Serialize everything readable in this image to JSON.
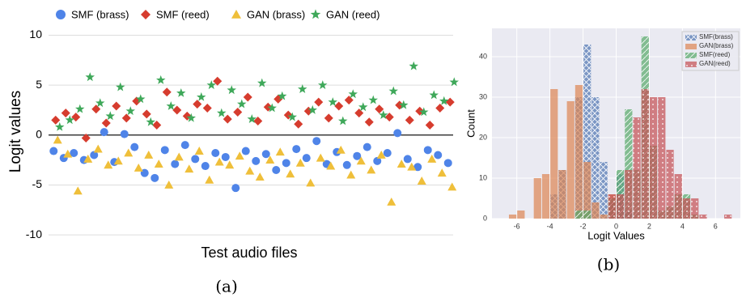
{
  "chart_data": [
    {
      "type": "scatter",
      "ylabel": "Logit values",
      "xlabel": "Test audio files",
      "caption": "(a)",
      "ylim": [
        -10.8,
        11.5
      ],
      "yticks": [
        10,
        5,
        0,
        -5,
        -10
      ],
      "zero_line": true,
      "grid": true,
      "series": [
        {
          "name": "SMF (brass)",
          "color": "#4f84e8",
          "marker": "circle",
          "values": [
            -1.6,
            -2.3,
            -1.8,
            -2.5,
            -2.0,
            0.3,
            -2.7,
            0.1,
            -1.2,
            -3.8,
            -4.3,
            -1.5,
            -2.9,
            -1.0,
            -2.4,
            -3.1,
            -1.8,
            -2.2,
            -5.3,
            -1.6,
            -2.6,
            -1.9,
            -3.5,
            -2.8,
            -1.4,
            -2.3,
            -0.6,
            -2.9,
            -1.7,
            -3.0,
            -2.1,
            -1.2,
            -2.6,
            -1.8,
            0.2,
            -2.4,
            -3.2,
            -1.5,
            -2.0,
            -2.8
          ]
        },
        {
          "name": "SMF (reed)",
          "color": "#d63c2e",
          "marker": "diamond",
          "values": [
            1.5,
            2.2,
            1.8,
            -0.3,
            2.6,
            1.2,
            2.9,
            1.7,
            3.4,
            2.1,
            1.0,
            4.3,
            2.5,
            1.9,
            3.1,
            2.7,
            5.4,
            1.6,
            2.3,
            3.8,
            1.4,
            2.8,
            3.6,
            2.0,
            1.1,
            2.4,
            3.3,
            1.7,
            2.9,
            3.5,
            2.2,
            1.3,
            2.6,
            1.8,
            3.0,
            1.5,
            2.4,
            1.0,
            2.7,
            3.3
          ]
        },
        {
          "name": "GAN (brass)",
          "color": "#efbf3a",
          "marker": "triangle",
          "values": [
            -0.5,
            -1.9,
            -5.6,
            -2.4,
            -1.4,
            -3.0,
            -2.6,
            -1.8,
            -3.3,
            -2.0,
            -2.9,
            -5.0,
            -2.2,
            -3.4,
            -1.6,
            -4.5,
            -2.7,
            -3.0,
            -2.1,
            -3.6,
            -4.2,
            -2.5,
            -1.7,
            -3.9,
            -2.8,
            -4.8,
            -2.3,
            -3.1,
            -1.5,
            -4.0,
            -2.6,
            -3.5,
            -2.0,
            -6.7,
            -2.9,
            -3.2,
            -4.6,
            -2.4,
            -3.8,
            -5.2
          ]
        },
        {
          "name": "GAN (reed)",
          "color": "#3fa85a",
          "marker": "star",
          "values": [
            0.8,
            1.5,
            2.6,
            5.8,
            3.2,
            1.9,
            4.8,
            2.4,
            3.6,
            1.3,
            5.5,
            2.9,
            4.2,
            1.7,
            3.8,
            5.0,
            2.2,
            4.5,
            3.1,
            1.6,
            5.2,
            2.7,
            3.9,
            1.8,
            4.6,
            2.5,
            5.0,
            3.3,
            1.4,
            4.1,
            2.8,
            3.5,
            2.0,
            4.4,
            3.0,
            6.9,
            2.3,
            4.0,
            3.4,
            5.3
          ]
        }
      ]
    },
    {
      "type": "histogram",
      "ylabel": "Count",
      "xlabel": "Logit Values",
      "caption": "(b)",
      "xlim": [
        -7.5,
        7.5
      ],
      "xticks": [
        -6,
        -4,
        -2,
        0,
        2,
        4,
        6
      ],
      "ylim": [
        0,
        47
      ],
      "yticks": [
        0,
        10,
        20,
        30,
        40
      ],
      "grid": true,
      "legend": "upper right",
      "bins": [
        -6.5,
        -6,
        -5.5,
        -5,
        -4.5,
        -4,
        -3.5,
        -3,
        -2.5,
        -2,
        -1.5,
        -1,
        -0.5,
        0,
        0.5,
        1,
        1.5,
        2,
        2.5,
        3,
        3.5,
        4,
        4.5,
        5,
        5.5,
        6,
        6.5,
        7
      ],
      "series": [
        {
          "name": "SMF(brass)",
          "color": "#4c72b0",
          "hatch": "cross",
          "values": [
            0,
            0,
            0,
            0,
            0,
            6,
            12,
            0,
            30,
            43,
            30,
            14,
            4,
            11,
            2,
            0,
            0,
            0,
            0,
            0,
            0,
            0,
            0,
            0,
            0,
            0,
            0
          ]
        },
        {
          "name": "GAN(brass)",
          "color": "#dd8452",
          "hatch": "none",
          "values": [
            1,
            2,
            0,
            10,
            11,
            32,
            12,
            29,
            33,
            14,
            4,
            1,
            6,
            0,
            0,
            0,
            0,
            0,
            0,
            0,
            0,
            0,
            0,
            0,
            0,
            0,
            0
          ]
        },
        {
          "name": "SMF(reed)",
          "color": "#55a868",
          "hatch": "diag",
          "values": [
            0,
            0,
            0,
            0,
            0,
            0,
            0,
            0,
            2,
            2,
            0,
            0,
            5,
            12,
            27,
            12,
            45,
            18,
            2,
            3,
            6,
            6,
            1,
            0,
            0,
            0,
            0
          ]
        },
        {
          "name": "GAN(reed)",
          "color": "#c44e52",
          "hatch": "dots",
          "values": [
            0,
            0,
            0,
            0,
            0,
            0,
            0,
            0,
            0,
            0,
            0,
            0,
            6,
            6,
            12,
            25,
            32,
            30,
            30,
            17,
            11,
            5,
            5,
            1,
            0,
            0,
            1
          ]
        }
      ]
    }
  ]
}
